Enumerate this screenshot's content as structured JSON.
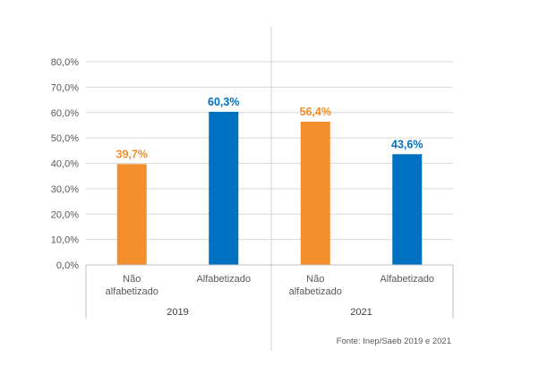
{
  "chart_data": {
    "type": "bar",
    "groups": [
      "2019",
      "2021"
    ],
    "categories": [
      "Não alfabetizado",
      "Alfabetizado"
    ],
    "category_lines": [
      [
        "Não",
        "alfabetizado"
      ],
      [
        "Alfabetizado"
      ]
    ],
    "bars": [
      {
        "group": "2019",
        "category": "Não alfabetizado",
        "value": 39.7,
        "label": "39,7%",
        "color": "#F28E2B"
      },
      {
        "group": "2019",
        "category": "Alfabetizado",
        "value": 60.3,
        "label": "60,3%",
        "color": "#0070C0"
      },
      {
        "group": "2021",
        "category": "Não alfabetizado",
        "value": 56.4,
        "label": "56,4%",
        "color": "#F28E2B"
      },
      {
        "group": "2021",
        "category": "Alfabetizado",
        "value": 43.6,
        "label": "43,6%",
        "color": "#0070C0"
      }
    ],
    "ylim": [
      0,
      80
    ],
    "yticks": [
      0,
      10,
      20,
      30,
      40,
      50,
      60,
      70,
      80
    ],
    "ytick_labels": [
      "0,0%",
      "10,0%",
      "20,0%",
      "30,0%",
      "40,0%",
      "50,0%",
      "60,0%",
      "70,0%",
      "80,0%"
    ],
    "grid": true,
    "colors": {
      "nao_alfabetizado": "#F28E2B",
      "alfabetizado": "#0070C0"
    }
  },
  "source": "Fonte: Inep/Saeb 2019 e 2021"
}
